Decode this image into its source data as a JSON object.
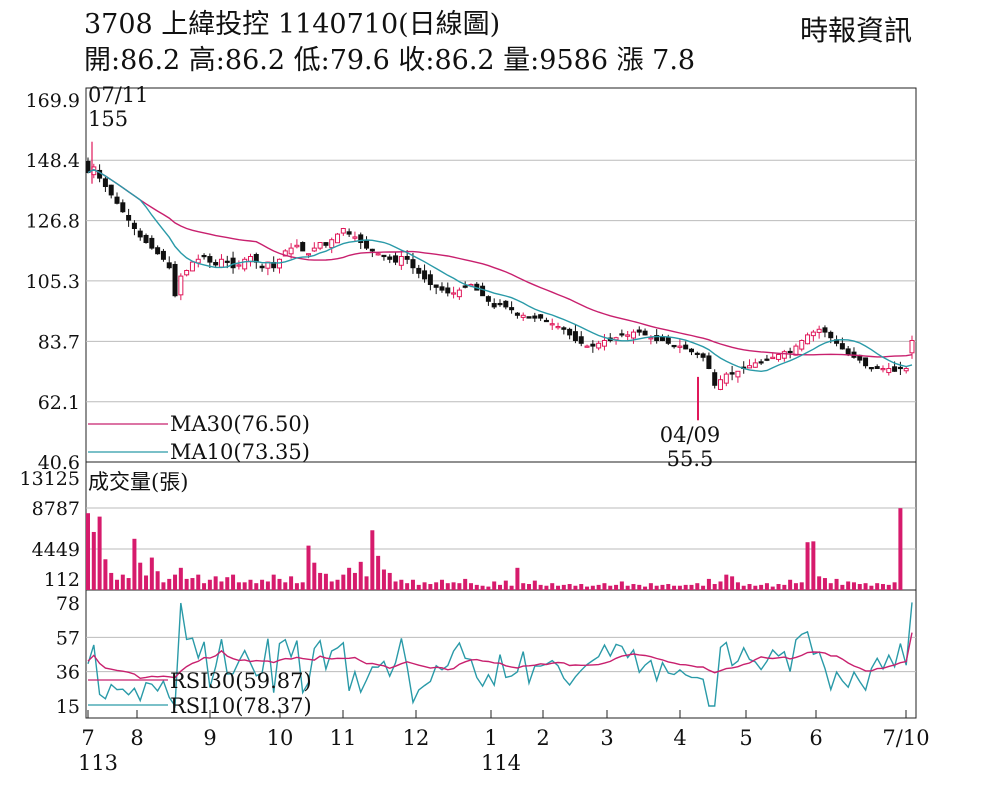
{
  "header": {
    "title": "3708  上緯投控 1140710(日線圖)",
    "source": "時報資訊",
    "ohlc": "開:86.2 高:86.2 低:79.6 收:86.2 量:9586 漲 7.8"
  },
  "colors": {
    "up": "#e0185a",
    "down": "#111111",
    "ma30": "#c8206e",
    "ma10": "#2a9aa8",
    "vol": "#d61b6c",
    "grid": "#bbbbbb"
  },
  "chart_data": [
    {
      "type": "candlestick",
      "yticks": [
        "169.9",
        "148.4",
        "126.8",
        "105.3",
        "83.7",
        "62.1",
        "40.6"
      ],
      "ylim": [
        40.6,
        169.9
      ],
      "annotations": [
        {
          "date": "07/11",
          "value": "155"
        },
        {
          "date": "04/09",
          "value": "55.5"
        }
      ],
      "legend": [
        {
          "name": "MA30(76.50)",
          "color": "#c8206e"
        },
        {
          "name": "MA10(73.35)",
          "color": "#2a9aa8"
        }
      ],
      "closes_approx": [
        144,
        146,
        142,
        139,
        136,
        133,
        130,
        127,
        124,
        121,
        119,
        117,
        115,
        113,
        110,
        100,
        107,
        109,
        112,
        113,
        114,
        112,
        111,
        113,
        112,
        110,
        111,
        113,
        114,
        112,
        110,
        112,
        110,
        113,
        116,
        117,
        118,
        116,
        115,
        117,
        119,
        118,
        120,
        122,
        124,
        122,
        121,
        119,
        117,
        116,
        115,
        114,
        113,
        112,
        114,
        113,
        110,
        108,
        106,
        104,
        103,
        102,
        101,
        101,
        102,
        103,
        104,
        102,
        100,
        98,
        96,
        97,
        96,
        95,
        93,
        93,
        92,
        92,
        92,
        91,
        90,
        89,
        88,
        86,
        84,
        83,
        82,
        82,
        83,
        84,
        84,
        85,
        86,
        86,
        87,
        87,
        86,
        85,
        84,
        84,
        83,
        82,
        82,
        81,
        80,
        79,
        78,
        74,
        68,
        70,
        72,
        72,
        73,
        74,
        75,
        76,
        76,
        77,
        78,
        79,
        80,
        80,
        82,
        84,
        86,
        87,
        88,
        87,
        85,
        83,
        81,
        79,
        78,
        77,
        75,
        74,
        74,
        74,
        74,
        73,
        74,
        74,
        84
      ]
    },
    {
      "type": "bar",
      "title": "成交量(張)",
      "yticks": [
        "13125",
        "8787",
        "4449",
        "112"
      ],
      "ylim": [
        112,
        13125
      ],
      "values_approx": [
        9000,
        6800,
        8600,
        3600,
        2000,
        1200,
        1800,
        1400,
        6000,
        3200,
        1700,
        3800,
        2200,
        900,
        1300,
        1800,
        2600,
        1300,
        1400,
        1800,
        800,
        1200,
        1600,
        1000,
        1500,
        1800,
        900,
        900,
        1200,
        800,
        1200,
        1000,
        1800,
        1300,
        900,
        1600,
        800,
        900,
        5200,
        3200,
        2000,
        1900,
        1000,
        1200,
        1800,
        2600,
        2000,
        3300,
        1600,
        7000,
        4000,
        2400,
        2000,
        1000,
        1200,
        800,
        1200,
        600,
        900,
        700,
        900,
        1200,
        800,
        900,
        800,
        1300,
        800,
        600,
        500,
        400,
        1000,
        600,
        1100,
        500,
        2600,
        800,
        700,
        1100,
        600,
        500,
        800,
        500,
        600,
        700,
        500,
        700,
        400,
        500,
        600,
        800,
        500,
        600,
        1000,
        500,
        700,
        600,
        400,
        800,
        500,
        600,
        700,
        500,
        500,
        600,
        600,
        800,
        500,
        1300,
        700,
        1000,
        1800,
        1600,
        900,
        500,
        700,
        500,
        600,
        800,
        400,
        700,
        600,
        1200,
        800,
        900,
        5600,
        5700,
        1600,
        1400,
        800,
        1300,
        600,
        1000,
        900,
        700,
        800,
        500,
        800,
        700,
        600,
        900,
        9586
      ]
    },
    {
      "type": "line",
      "yticks": [
        "78",
        "57",
        "36",
        "15"
      ],
      "ylim": [
        15,
        78
      ],
      "legend": [
        {
          "name": "RSI30(59.87)",
          "color": "#c8206e"
        },
        {
          "name": "RSI10(78.37)",
          "color": "#2a9aa8"
        }
      ],
      "xticks": [
        "7",
        "8",
        "9",
        "10",
        "11",
        "12",
        "1",
        "2",
        "3",
        "4",
        "5",
        "6",
        "7/10"
      ],
      "xsub": [
        {
          "label": "113",
          "at": "7"
        },
        {
          "label": "114",
          "at": "1"
        }
      ]
    }
  ]
}
